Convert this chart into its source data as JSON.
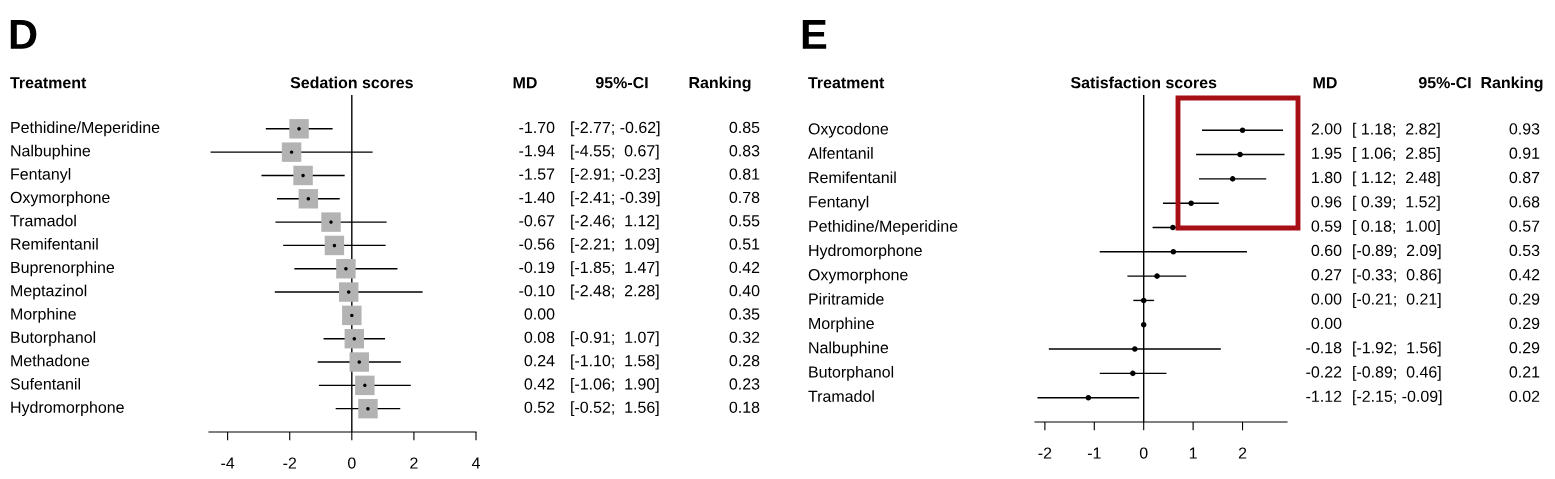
{
  "chart_data": [
    {
      "type": "scatter",
      "orientation": "horizontal",
      "title": "D",
      "xlabel": "Sedation scores",
      "categories": [
        "Pethidine/Meperidine",
        "Nalbuphine",
        "Fentanyl",
        "Oxymorphone",
        "Tramadol",
        "Remifentanil",
        "Buprenorphine",
        "Meptazinol",
        "Morphine",
        "Butorphanol",
        "Methadone",
        "Sufentanil",
        "Hydromorphone"
      ],
      "values": [
        -1.7,
        -1.94,
        -1.57,
        -1.4,
        -0.67,
        -0.56,
        -0.19,
        -0.1,
        0.0,
        0.08,
        0.24,
        0.42,
        0.52
      ],
      "errors": [
        [
          -2.77,
          -0.62
        ],
        [
          -4.55,
          0.67
        ],
        [
          -2.91,
          -0.23
        ],
        [
          -2.41,
          -0.39
        ],
        [
          -2.46,
          1.12
        ],
        [
          -2.21,
          1.09
        ],
        [
          -1.85,
          1.47
        ],
        [
          -2.48,
          2.28
        ],
        null,
        [
          -0.91,
          1.07
        ],
        [
          -1.1,
          1.58
        ],
        [
          -1.06,
          1.9
        ],
        [
          -0.52,
          1.56
        ]
      ],
      "color": "#b3b3b3",
      "marker": "square",
      "xlim": [
        -4.6,
        4
      ],
      "xticks": [
        -4,
        -2,
        0,
        2,
        4
      ],
      "tick_labels": "x",
      "ref_lines": [
        {
          "axis": "x",
          "value": 0
        }
      ],
      "annotations": [
        "Treatment",
        "MD",
        "95%-CI",
        "Ranking",
        "-1.70",
        "-1.94",
        "-1.57",
        "-1.40",
        "-0.67",
        "-0.56",
        "-0.19",
        "-0.10",
        "0.00",
        "0.08",
        "0.24",
        "0.42",
        "0.52",
        "[-2.77; -0.62]",
        "[-4.55;  0.67]",
        "[-2.91; -0.23]",
        "[-2.41; -0.39]",
        "[-2.46;  1.12]",
        "[-2.21;  1.09]",
        "[-1.85;  1.47]",
        "[-2.48;  2.28]",
        "[-0.91;  1.07]",
        "[-1.10;  1.58]",
        "[-1.06;  1.90]",
        "[-0.52;  1.56]",
        "0.85",
        "0.83",
        "0.81",
        "0.78",
        "0.55",
        "0.51",
        "0.42",
        "0.40",
        "0.35",
        "0.32",
        "0.28",
        "0.23",
        "0.18"
      ]
    },
    {
      "type": "scatter",
      "orientation": "horizontal",
      "title": "E",
      "xlabel": "Satisfaction scores",
      "categories": [
        "Oxycodone",
        "Alfentanil",
        "Remifentanil",
        "Fentanyl",
        "Pethidine/Meperidine",
        "Hydromorphone",
        "Oxymorphone",
        "Piritramide",
        "Morphine",
        "Nalbuphine",
        "Butorphanol",
        "Tramadol"
      ],
      "values": [
        2.0,
        1.95,
        1.8,
        0.96,
        0.59,
        0.6,
        0.27,
        0.0,
        0.0,
        -0.18,
        -0.22,
        -1.12
      ],
      "errors": [
        [
          1.18,
          2.82
        ],
        [
          1.06,
          2.85
        ],
        [
          1.12,
          2.48
        ],
        [
          0.39,
          1.52
        ],
        [
          0.18,
          1.0
        ],
        [
          -0.89,
          2.09
        ],
        [
          -0.33,
          0.86
        ],
        [
          -0.21,
          0.21
        ],
        null,
        [
          -1.92,
          1.56
        ],
        [
          -0.89,
          0.46
        ],
        [
          -2.15,
          -0.09
        ]
      ],
      "color": "#000000",
      "marker": "circle",
      "xlim": [
        -2.2,
        2.9
      ],
      "xticks": [
        -2,
        -1,
        0,
        1,
        2
      ],
      "tick_labels": "x",
      "ref_lines": [
        {
          "axis": "x",
          "value": 0
        }
      ],
      "annotations": [
        "Treatment",
        "MD",
        "95%-CI",
        "Ranking",
        "2.00",
        "1.95",
        "1.80",
        "0.96",
        "0.59",
        "0.60",
        "0.27",
        "0.00",
        "0.00",
        "-0.18",
        "-0.22",
        "-1.12",
        "[ 1.18;  2.82]",
        "[ 1.06;  2.85]",
        "[ 1.12;  2.48]",
        "[ 0.39;  1.52]",
        "[ 0.18;  1.00]",
        "[-0.89;  2.09]",
        "[-0.33;  0.86]",
        "[-0.21;  0.21]",
        "[-1.92;  1.56]",
        "[-0.89;  0.46]",
        "[-2.15; -0.09]",
        "0.93",
        "0.91",
        "0.87",
        "0.68",
        "0.57",
        "0.53",
        "0.42",
        "0.29",
        "0.29",
        "0.29",
        "0.21",
        "0.02"
      ]
    }
  ]
}
